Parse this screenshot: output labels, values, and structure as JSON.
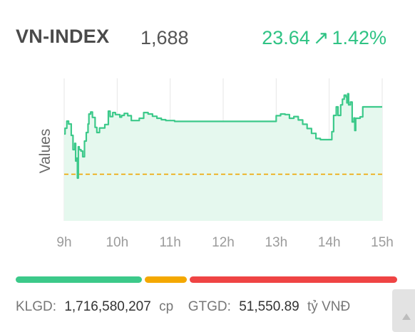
{
  "header": {
    "index_name": "VN-INDEX",
    "index_value": "1,688",
    "change": "23.64",
    "change_pct": "1.42%",
    "arrow": "↗",
    "change_color": "#2fc384"
  },
  "chart_data": {
    "type": "area",
    "ylabel": "Values",
    "x_ticks": [
      "9h",
      "10h",
      "11h",
      "12h",
      "13h",
      "14h",
      "15h"
    ],
    "x_range": [
      "09:00",
      "15:00"
    ],
    "reference_value": 1664.36,
    "y_range": [
      1648,
      1698
    ],
    "series_color": "#3cc98a",
    "fill_color": "#e5f8ee",
    "reference_color": "#f0a500",
    "series": [
      {
        "x": [
          "09:00",
          "09:01",
          "09:03",
          "09:05",
          "09:08",
          "09:10",
          "09:12",
          "09:13",
          "09:14",
          "09:15",
          "09:16",
          "09:17",
          "09:19",
          "09:21",
          "09:23",
          "09:25",
          "09:27",
          "09:28",
          "09:30",
          "09:32",
          "09:35",
          "09:37",
          "09:40",
          "09:43",
          "09:46",
          "09:50",
          "09:52",
          "09:55",
          "09:58",
          "10:00",
          "10:03",
          "10:05",
          "10:08",
          "10:12",
          "10:16",
          "10:20",
          "10:25",
          "10:30",
          "10:35",
          "10:40",
          "10:45",
          "10:50",
          "10:55",
          "11:00",
          "11:05",
          "11:10",
          "11:15",
          "11:20",
          "11:25",
          "11:30",
          "12:00",
          "13:00",
          "13:05",
          "13:10",
          "13:15",
          "13:20",
          "13:25",
          "13:30",
          "13:35",
          "13:40",
          "13:45",
          "13:50",
          "13:55",
          "14:00",
          "14:03",
          "14:05",
          "14:08",
          "14:10",
          "14:13",
          "14:15",
          "14:17",
          "14:19",
          "14:20",
          "14:21",
          "14:22",
          "14:24",
          "14:26",
          "14:28",
          "14:29",
          "14:30",
          "14:32",
          "14:35",
          "14:38",
          "14:40",
          "14:45",
          "14:50",
          "15:00"
        ],
        "y": [
          1678.5,
          1680.5,
          1683,
          1682,
          1678,
          1673,
          1675.2,
          1669,
          1670,
          1663,
          1674,
          1673,
          1672.5,
          1670.5,
          1676,
          1679,
          1682,
          1685.5,
          1686.2,
          1684.3,
          1680.8,
          1679,
          1680.6,
          1680.6,
          1681.8,
          1686.5,
          1684.6,
          1686,
          1685.3,
          1685.3,
          1684.4,
          1685,
          1685.7,
          1684.9,
          1683.2,
          1683.2,
          1684,
          1686,
          1685.5,
          1684.7,
          1684,
          1683.5,
          1683.2,
          1683.2,
          1682.9,
          1682.9,
          1682.9,
          1682.9,
          1682.9,
          1682.9,
          1682.9,
          1684.9,
          1685.5,
          1685.3,
          1684,
          1684.6,
          1683.4,
          1681.9,
          1680.4,
          1678.7,
          1676.9,
          1676.5,
          1676.5,
          1676.5,
          1679.3,
          1685,
          1688,
          1685,
          1688.7,
          1690.7,
          1692.1,
          1691.5,
          1689.4,
          1692.6,
          1688.7,
          1689.7,
          1682.7,
          1684.1,
          1679.7,
          1684,
          1684,
          1684.5,
          1688,
          1688,
          1688,
          1688,
          1688
        ]
      }
    ],
    "grid": true,
    "legend": "none"
  },
  "progress": {
    "up_fraction": 0.338,
    "flat_fraction": 0.119,
    "down_fraction": 0.543,
    "up_color": "#3cc98a",
    "flat_color": "#f4a800",
    "down_color": "#ef4444"
  },
  "footer": {
    "klgd_label": "KLGD:",
    "klgd_value": "1,716,580,207",
    "klgd_unit": "cp",
    "gtgd_label": "GTGD:",
    "gtgd_value": "51,550.89",
    "gtgd_unit": "tỷ VNĐ"
  }
}
